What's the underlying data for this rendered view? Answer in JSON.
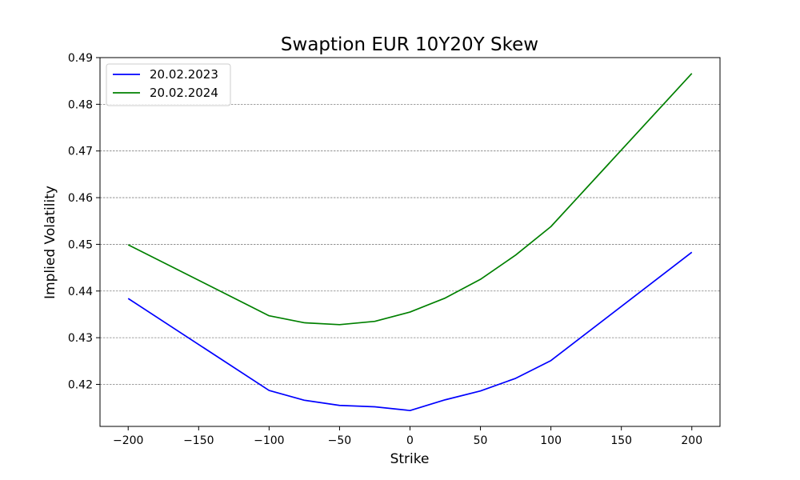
{
  "chart_data": {
    "type": "line",
    "title": "Swaption EUR 10Y20Y Skew",
    "xlabel": "Strike",
    "ylabel": "Implied Volatility",
    "x": [
      -200,
      -100,
      -75,
      -50,
      -25,
      0,
      25,
      50,
      75,
      100,
      200
    ],
    "series": [
      {
        "name": "20.02.2023",
        "color": "#0000ff",
        "values": [
          0.4384,
          0.4187,
          0.4166,
          0.4155,
          0.4152,
          0.4144,
          0.4167,
          0.4186,
          0.4213,
          0.4251,
          0.4483
        ]
      },
      {
        "name": "20.02.2024",
        "color": "#008000",
        "values": [
          0.4499,
          0.4347,
          0.4332,
          0.4328,
          0.4335,
          0.4355,
          0.4385,
          0.4425,
          0.4477,
          0.4538,
          0.4866
        ]
      }
    ],
    "xlim": [
      -220,
      220
    ],
    "ylim": [
      0.411,
      0.49
    ],
    "xticks": [
      -200,
      -150,
      -100,
      -50,
      0,
      50,
      100,
      150,
      200
    ],
    "xtick_labels": [
      "−200",
      "−150",
      "−100",
      "−50",
      "0",
      "50",
      "100",
      "150",
      "200"
    ],
    "yticks": [
      0.42,
      0.43,
      0.44,
      0.45,
      0.46,
      0.47,
      0.48,
      0.49
    ],
    "ytick_labels": [
      "0.42",
      "0.43",
      "0.44",
      "0.45",
      "0.46",
      "0.47",
      "0.48",
      "0.49"
    ],
    "grid": "horizontal dashed",
    "legend": "upper-left"
  }
}
